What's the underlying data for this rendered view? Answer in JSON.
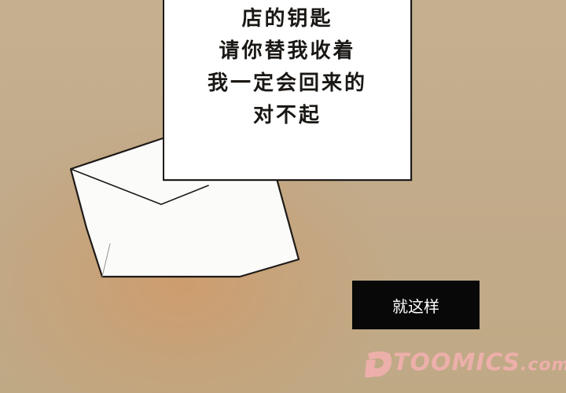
{
  "note": {
    "lines": [
      "店的钥匙",
      "请你替我收着",
      "我一定会回来的",
      "对不起"
    ]
  },
  "caption": "就这样",
  "watermark": {
    "brand": "TOOMICS",
    "suffix": ".com",
    "color": "#f4b0b0"
  },
  "colors": {
    "background": "#c2ab8a",
    "background_glow": "#cc9c6c",
    "caption_box": "#080808",
    "paper": "#ffffff",
    "ink": "#1a1714"
  }
}
